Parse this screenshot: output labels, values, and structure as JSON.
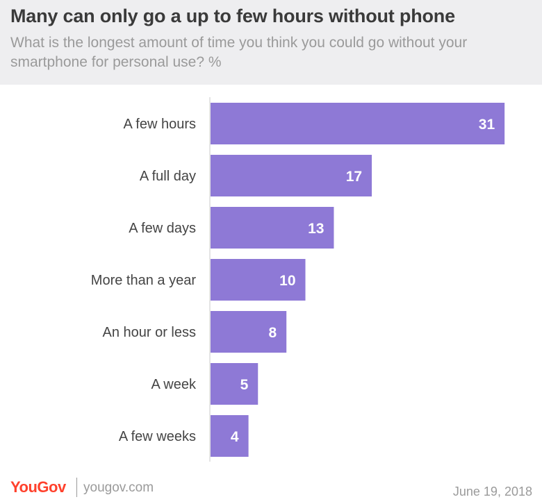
{
  "header": {
    "title": "Many can only go a up to few hours without phone",
    "subtitle": "What is the longest amount of time you think you could go without your smartphone for personal use? %"
  },
  "chart_data": {
    "type": "bar",
    "orientation": "horizontal",
    "categories": [
      "A few hours",
      "A full day",
      "A few days",
      "More than a year",
      "An hour or less",
      "A week",
      "A few weeks"
    ],
    "values": [
      31,
      17,
      13,
      10,
      8,
      5,
      4
    ],
    "title": "Many can only go a up to few hours without phone",
    "subtitle": "What is the longest amount of time you think you could go without your smartphone for personal use? %",
    "xlim": [
      0,
      35
    ],
    "bar_color": "#8e79d6",
    "label_color": "#ffffff",
    "grid": false
  },
  "footer": {
    "brand": "YouGov",
    "site": "yougov.com",
    "date": "June 19, 2018"
  },
  "colors": {
    "header_bg": "#eeeef0",
    "title": "#3a3a3a",
    "muted": "#9a9a9a",
    "brand": "#ff412c",
    "axis": "#c8c8c8"
  }
}
